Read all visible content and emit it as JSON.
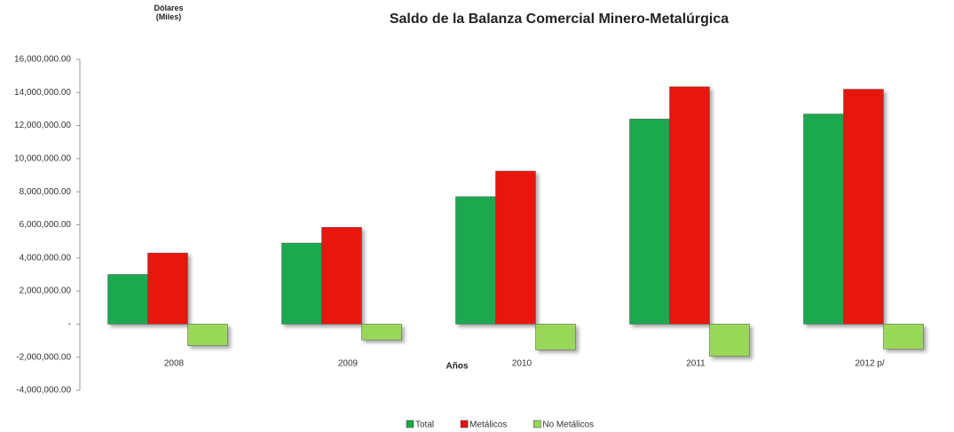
{
  "chart_data": {
    "type": "bar",
    "title": "Saldo de la Balanza Comercial Minero-Metalúrgica",
    "y_label": "Dólares (Miles)",
    "x_label": "Años",
    "categories": [
      "2008",
      "2009",
      "2010",
      "2011",
      "2012 p/"
    ],
    "series": [
      {
        "name": "Total",
        "color": "#1aa84f",
        "values": [
          3000000,
          4900000,
          7700000,
          12400000,
          12700000
        ]
      },
      {
        "name": "Metálicos",
        "color": "#e8120c",
        "values": [
          4300000,
          5850000,
          9250000,
          14350000,
          14200000
        ]
      },
      {
        "name": "No Metálicos",
        "color": "#9ad85a",
        "values": [
          -1300000,
          -950000,
          -1550000,
          -1950000,
          -1500000
        ]
      }
    ],
    "ylim": [
      -4000000,
      16000000
    ],
    "yticks": [
      {
        "value": -4000000,
        "label": "-4,000,000.00"
      },
      {
        "value": -2000000,
        "label": "-2,000,000.00"
      },
      {
        "value": 0,
        "label": "-"
      },
      {
        "value": 2000000,
        "label": "2,000,000.00"
      },
      {
        "value": 4000000,
        "label": "4,000,000.00"
      },
      {
        "value": 6000000,
        "label": "6,000,000.00"
      },
      {
        "value": 8000000,
        "label": "8,000,000.00"
      },
      {
        "value": 10000000,
        "label": "10,000,000.00"
      },
      {
        "value": 12000000,
        "label": "12,000,000.00"
      },
      {
        "value": 14000000,
        "label": "14,000,000.00"
      },
      {
        "value": 16000000,
        "label": "16,000,000.00"
      }
    ],
    "grid": false
  }
}
